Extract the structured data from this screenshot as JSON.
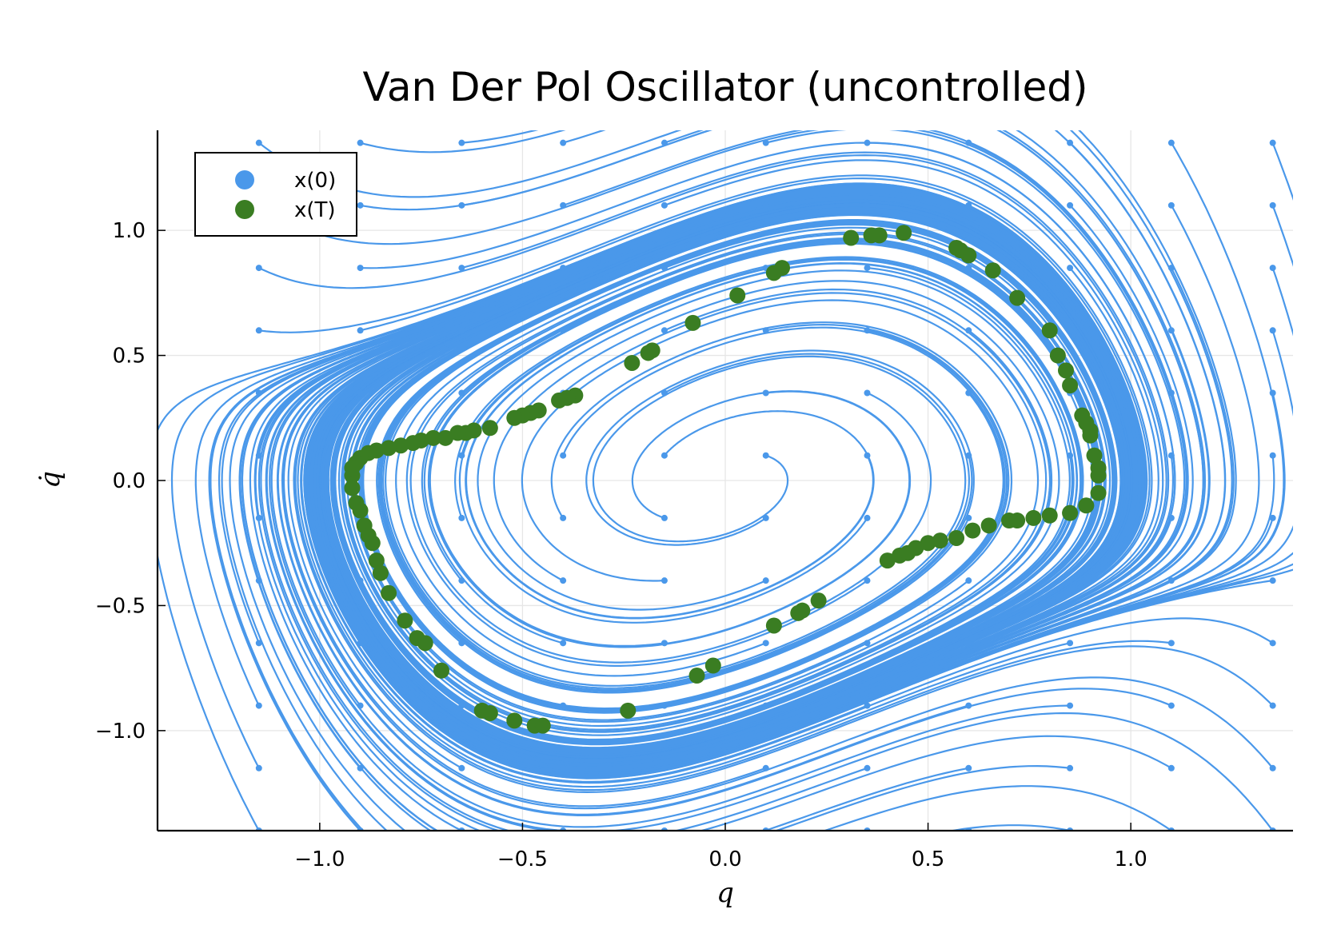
{
  "chart_data": {
    "type": "scatter",
    "title": "Van Der Pol Oscillator (uncontrolled)",
    "xlabel": "q",
    "ylabel": "q̇",
    "xlim": [
      -1.4,
      1.4
    ],
    "ylim": [
      -1.4,
      1.4
    ],
    "xticks": [
      -1.0,
      -0.5,
      0.0,
      0.5,
      1.0
    ],
    "xtick_labels": [
      "−1.0",
      "−0.5",
      "0.0",
      "0.5",
      "1.0"
    ],
    "yticks": [
      -1.0,
      -0.5,
      0.0,
      0.5,
      1.0
    ],
    "ytick_labels": [
      "−1.0",
      "−0.5",
      "0.0",
      "0.5",
      "1.0"
    ],
    "grid": true,
    "legend_position": "top-left",
    "initial_grid": {
      "q": [
        -1.15,
        -0.9,
        -0.65,
        -0.4,
        -0.15,
        0.1,
        0.35,
        0.6,
        0.85,
        1.1,
        1.35
      ],
      "qdot": [
        1.35,
        1.1,
        0.85,
        0.6,
        0.35,
        0.1,
        -0.15,
        -0.4,
        -0.65,
        -0.9,
        -1.15,
        -1.4
      ]
    },
    "series": [
      {
        "name": "x(0)",
        "color": "#4a98ea",
        "kind": "initial states with trajectories"
      },
      {
        "name": "x(T)",
        "color": "#3a7d22",
        "kind": "final states",
        "points": [
          [
            -0.92,
            0.02
          ],
          [
            -0.92,
            -0.03
          ],
          [
            -0.91,
            -0.09
          ],
          [
            -0.9,
            -0.12
          ],
          [
            -0.89,
            -0.18
          ],
          [
            -0.88,
            -0.22
          ],
          [
            -0.87,
            -0.25
          ],
          [
            -0.86,
            -0.32
          ],
          [
            -0.85,
            -0.37
          ],
          [
            -0.83,
            -0.45
          ],
          [
            -0.79,
            -0.56
          ],
          [
            -0.76,
            -0.63
          ],
          [
            -0.74,
            -0.65
          ],
          [
            -0.7,
            -0.76
          ],
          [
            -0.6,
            -0.92
          ],
          [
            -0.58,
            -0.93
          ],
          [
            -0.52,
            -0.96
          ],
          [
            -0.47,
            -0.98
          ],
          [
            -0.45,
            -0.98
          ],
          [
            -0.24,
            -0.92
          ],
          [
            -0.07,
            -0.78
          ],
          [
            -0.03,
            -0.74
          ],
          [
            0.12,
            -0.58
          ],
          [
            0.18,
            -0.53
          ],
          [
            0.19,
            -0.52
          ],
          [
            0.23,
            -0.48
          ],
          [
            0.4,
            -0.32
          ],
          [
            0.43,
            -0.3
          ],
          [
            0.45,
            -0.29
          ],
          [
            0.47,
            -0.27
          ],
          [
            0.5,
            -0.25
          ],
          [
            0.53,
            -0.24
          ],
          [
            0.57,
            -0.23
          ],
          [
            0.61,
            -0.2
          ],
          [
            0.65,
            -0.18
          ],
          [
            0.7,
            -0.16
          ],
          [
            0.72,
            -0.16
          ],
          [
            0.76,
            -0.15
          ],
          [
            0.8,
            -0.14
          ],
          [
            0.85,
            -0.13
          ],
          [
            0.89,
            -0.1
          ],
          [
            0.92,
            -0.05
          ],
          [
            0.92,
            0.02
          ],
          [
            0.92,
            0.05
          ],
          [
            0.91,
            0.1
          ],
          [
            0.9,
            0.18
          ],
          [
            0.9,
            0.2
          ],
          [
            0.89,
            0.23
          ],
          [
            0.88,
            0.26
          ],
          [
            0.85,
            0.38
          ],
          [
            0.84,
            0.44
          ],
          [
            0.82,
            0.5
          ],
          [
            0.8,
            0.6
          ],
          [
            0.72,
            0.73
          ],
          [
            0.66,
            0.84
          ],
          [
            0.6,
            0.9
          ],
          [
            0.58,
            0.92
          ],
          [
            0.57,
            0.93
          ],
          [
            0.44,
            0.99
          ],
          [
            0.38,
            0.98
          ],
          [
            0.36,
            0.98
          ],
          [
            0.31,
            0.97
          ],
          [
            0.14,
            0.85
          ],
          [
            0.12,
            0.83
          ],
          [
            0.03,
            0.74
          ],
          [
            -0.08,
            0.63
          ],
          [
            -0.18,
            0.52
          ],
          [
            -0.19,
            0.51
          ],
          [
            -0.23,
            0.47
          ],
          [
            -0.37,
            0.34
          ],
          [
            -0.39,
            0.33
          ],
          [
            -0.41,
            0.32
          ],
          [
            -0.46,
            0.28
          ],
          [
            -0.48,
            0.27
          ],
          [
            -0.5,
            0.26
          ],
          [
            -0.52,
            0.25
          ],
          [
            -0.58,
            0.21
          ],
          [
            -0.62,
            0.2
          ],
          [
            -0.64,
            0.19
          ],
          [
            -0.66,
            0.19
          ],
          [
            -0.69,
            0.17
          ],
          [
            -0.72,
            0.17
          ],
          [
            -0.75,
            0.16
          ],
          [
            -0.77,
            0.15
          ],
          [
            -0.8,
            0.14
          ],
          [
            -0.83,
            0.13
          ],
          [
            -0.86,
            0.12
          ],
          [
            -0.88,
            0.11
          ],
          [
            -0.9,
            0.09
          ],
          [
            -0.91,
            0.07
          ],
          [
            -0.92,
            0.05
          ]
        ]
      }
    ]
  }
}
